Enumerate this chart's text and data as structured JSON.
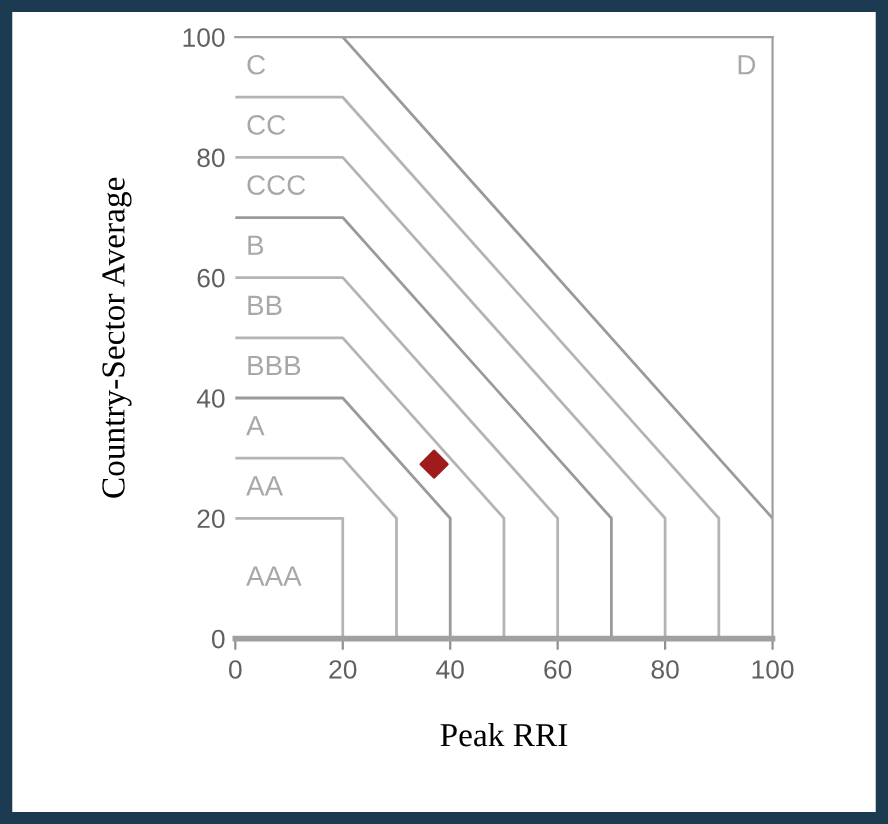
{
  "chart_data": {
    "type": "line",
    "xlabel": "Peak RRI",
    "ylabel": "Country-Sector Average",
    "xlim": [
      0,
      100
    ],
    "ylim": [
      0,
      100
    ],
    "xticks": [
      0,
      20,
      40,
      60,
      80,
      100
    ],
    "yticks": [
      0,
      20,
      40,
      60,
      80,
      100
    ],
    "grid": false,
    "legend": false,
    "series": [
      {
        "color": "#b4b4b4",
        "x": [
          0,
          20,
          20
        ],
        "values": [
          20,
          20,
          0
        ],
        "marker": "none"
      },
      {
        "color": "#b4b4b4",
        "x": [
          0,
          20,
          30,
          30
        ],
        "values": [
          30,
          30,
          20,
          0
        ],
        "marker": "none"
      },
      {
        "color": "#9a9a9a",
        "x": [
          0,
          20,
          40,
          40
        ],
        "values": [
          40,
          40,
          20,
          0
        ],
        "marker": "none"
      },
      {
        "color": "#b4b4b4",
        "x": [
          0,
          20,
          50,
          50
        ],
        "values": [
          50,
          50,
          20,
          0
        ],
        "marker": "none"
      },
      {
        "color": "#b4b4b4",
        "x": [
          0,
          20,
          60,
          60
        ],
        "values": [
          60,
          60,
          20,
          0
        ],
        "marker": "none"
      },
      {
        "color": "#9a9a9a",
        "x": [
          0,
          20,
          70,
          70
        ],
        "values": [
          70,
          70,
          20,
          0
        ],
        "marker": "none"
      },
      {
        "color": "#b4b4b4",
        "x": [
          0,
          20,
          80,
          80
        ],
        "values": [
          80,
          80,
          20,
          0
        ],
        "marker": "none"
      },
      {
        "color": "#b4b4b4",
        "x": [
          0,
          20,
          90,
          90
        ],
        "values": [
          90,
          90,
          20,
          0
        ],
        "marker": "none"
      },
      {
        "color": "#9a9a9a",
        "x": [
          20,
          100
        ],
        "values": [
          100,
          20
        ],
        "marker": "none"
      },
      {
        "type": "scatter",
        "color": "#a01c1c",
        "x": [
          37
        ],
        "values": [
          29
        ],
        "marker": "diamond"
      }
    ],
    "annotations": [
      "C",
      "CC",
      "CCC",
      "B",
      "BB",
      "BBB",
      "A",
      "AA",
      "AAA",
      "D"
    ]
  }
}
